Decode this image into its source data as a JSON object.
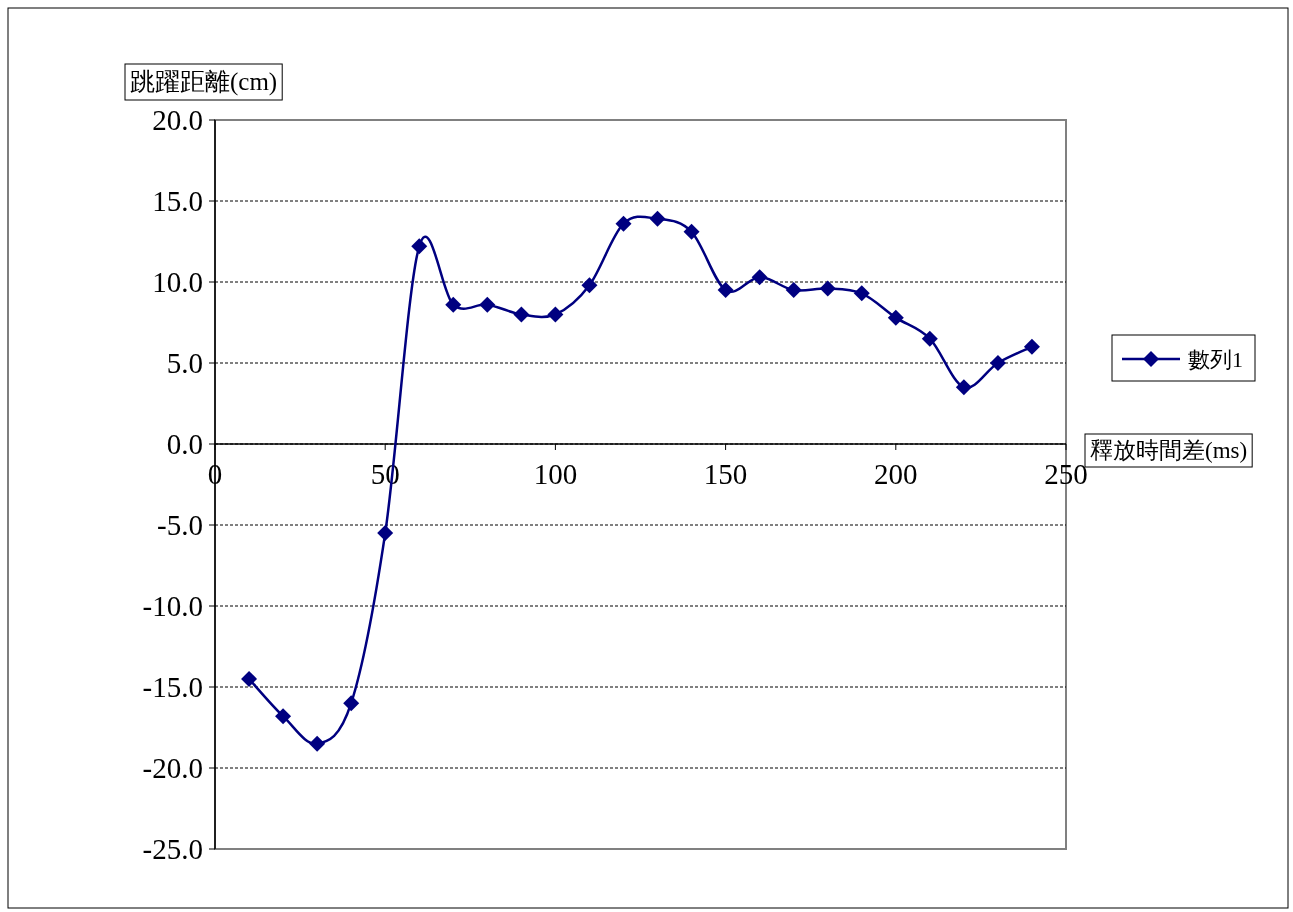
{
  "chart_data": {
    "type": "line",
    "xlabel": "釋放時間差(ms)",
    "ylabel": "跳躍距離(cm)",
    "x": [
      10,
      20,
      30,
      40,
      50,
      60,
      70,
      80,
      90,
      100,
      110,
      120,
      130,
      140,
      150,
      160,
      170,
      180,
      190,
      200,
      210,
      220,
      230,
      240
    ],
    "series": [
      {
        "name": "數列1",
        "color": "#000080",
        "values": [
          -14.5,
          -16.8,
          -18.5,
          -16.0,
          -5.5,
          12.2,
          8.6,
          8.6,
          8.0,
          8.0,
          9.8,
          13.6,
          13.9,
          13.1,
          9.5,
          10.3,
          9.5,
          9.6,
          9.3,
          7.8,
          6.5,
          3.5,
          5.0,
          6.0
        ]
      }
    ],
    "xlim": [
      0,
      250
    ],
    "ylim": [
      -25,
      20
    ],
    "xticks": [
      0,
      50,
      100,
      150,
      200,
      250
    ],
    "yticks": [
      {
        "value": -25,
        "label": "-25.0"
      },
      {
        "value": -20,
        "label": "-20.0"
      },
      {
        "value": -15,
        "label": "-15.0"
      },
      {
        "value": -10,
        "label": "-10.0"
      },
      {
        "value": -5,
        "label": "-5.0"
      },
      {
        "value": 0,
        "label": "0.0"
      },
      {
        "value": 5,
        "label": "5.0"
      },
      {
        "value": 10,
        "label": "10.0"
      },
      {
        "value": 15,
        "label": "15.0"
      },
      {
        "value": 20,
        "label": "20.0"
      }
    ],
    "grid": "y",
    "legend": "right",
    "marker": "diamond",
    "line_style": "solid"
  }
}
